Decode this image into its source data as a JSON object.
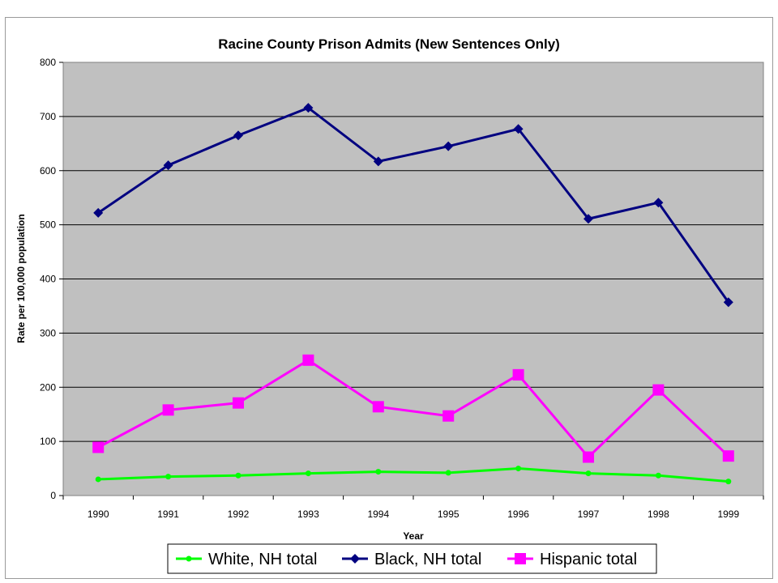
{
  "chart_data": {
    "type": "line",
    "title": "Racine County Prison Admits (New Sentences Only)",
    "xlabel": "Year",
    "ylabel": "Rate per 100,000 population",
    "categories": [
      "1990",
      "1991",
      "1992",
      "1993",
      "1994",
      "1995",
      "1996",
      "1997",
      "1998",
      "1999"
    ],
    "ylim": [
      0,
      800
    ],
    "yticks": [
      0,
      100,
      200,
      300,
      400,
      500,
      600,
      700,
      800
    ],
    "grid": true,
    "legend_position": "bottom",
    "plot_background": "#c0c0c0",
    "series": [
      {
        "name": "White, NH total",
        "color": "#00ff00",
        "marker": "circle",
        "values": [
          30,
          35,
          37,
          41,
          44,
          42,
          50,
          41,
          37,
          26
        ]
      },
      {
        "name": "Black, NH total",
        "color": "#000080",
        "marker": "diamond",
        "values": [
          522,
          610,
          665,
          716,
          617,
          645,
          677,
          511,
          541,
          357
        ]
      },
      {
        "name": "Hispanic total",
        "color": "#ff00ff",
        "marker": "square",
        "values": [
          89,
          158,
          171,
          250,
          164,
          147,
          223,
          71,
          195,
          73
        ]
      }
    ]
  }
}
